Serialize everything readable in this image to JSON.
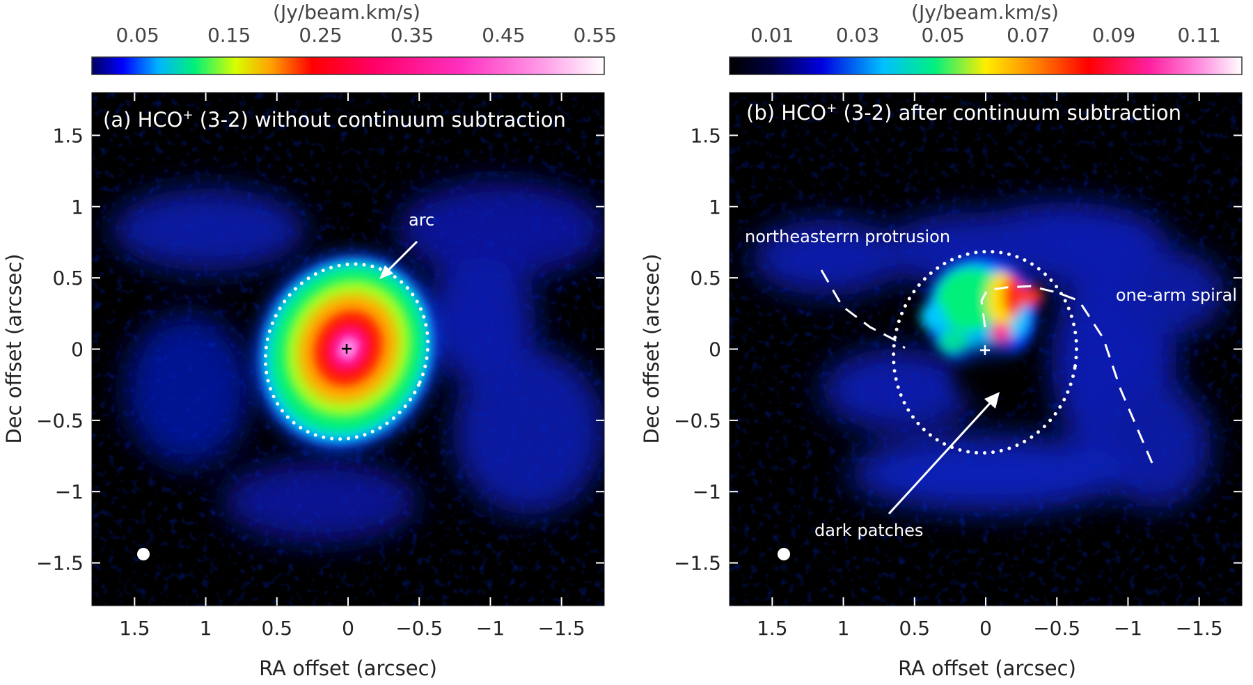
{
  "chart_data": [
    {
      "type": "heatmap",
      "panel": "a",
      "title_prefix": "(a) HCO",
      "title_sup": "+",
      "title_suffix": " (3-2) without continuum subtraction",
      "colorbar": {
        "unit": "(Jy/beam.km/s)",
        "range": [
          0.0,
          0.56
        ],
        "ticks": [
          0.05,
          0.15,
          0.25,
          0.35,
          0.45,
          0.55
        ],
        "tick_labels": [
          "0.05",
          "0.15",
          "0.25",
          "0.35",
          "0.45",
          "0.55"
        ]
      },
      "xlabel": "RA offset (arcsec)",
      "ylabel": "Dec offset (arcsec)",
      "xlim": [
        1.8,
        -1.8
      ],
      "ylim": [
        -1.8,
        1.8
      ],
      "x_ticks": [
        1.5,
        1,
        0.5,
        0,
        -0.5,
        -1,
        -1.5
      ],
      "x_tick_labels": [
        "1.5",
        "1",
        "0.5",
        "0",
        "−0.5",
        "−1",
        "−1.5"
      ],
      "y_ticks": [
        1.5,
        1,
        0.5,
        0,
        -0.5,
        -1,
        -1.5
      ],
      "y_tick_labels": [
        "1.5",
        "1",
        "0.5",
        "0",
        "−0.5",
        "−1",
        "−1.5"
      ],
      "annotations": [
        {
          "text": "arc",
          "arrow_from": [
            -0.55,
            0.83
          ],
          "arrow_to": [
            -0.25,
            0.53
          ]
        }
      ],
      "ellipse_dotted": {
        "center": [
          0.0,
          -0.05
        ],
        "semi_axes": [
          0.62,
          0.67
        ],
        "tilt_deg": 25
      },
      "star_marker": [
        0,
        0
      ],
      "beam": [
        1.43,
        -1.43
      ]
    },
    {
      "type": "heatmap",
      "panel": "b",
      "title_prefix": "(b) HCO",
      "title_sup": "+",
      "title_suffix": " (3-2) after continuum subtraction",
      "colorbar": {
        "unit": "(Jy/beam.km/s)",
        "range": [
          0.0,
          0.12
        ],
        "ticks": [
          0.01,
          0.03,
          0.05,
          0.07,
          0.09,
          0.11
        ],
        "tick_labels": [
          "0.01",
          "0.03",
          "0.05",
          "0.07",
          "0.09",
          "0.11"
        ]
      },
      "xlabel": "RA offset (arcsec)",
      "ylabel": "Dec offset (arcsec)",
      "xlim": [
        1.8,
        -1.8
      ],
      "ylim": [
        -1.8,
        1.8
      ],
      "x_ticks": [
        1.5,
        1,
        0.5,
        0,
        -0.5,
        -1,
        -1.5
      ],
      "x_tick_labels": [
        "1.5",
        "1",
        "0.5",
        "0",
        "−0.5",
        "−1",
        "−1.5"
      ],
      "y_ticks": [
        1.5,
        1,
        0.5,
        0,
        -0.5,
        -1,
        -1.5
      ],
      "y_tick_labels": [
        "1.5",
        "1",
        "0.5",
        "0",
        "−0.5",
        "−1",
        "−1.5"
      ],
      "annotations": [
        {
          "text": "northeasterrn protrusion"
        },
        {
          "text": "one-arm spiral"
        },
        {
          "text": "dark patches",
          "arrow_from": [
            0.63,
            -1.1
          ],
          "arrow_to": [
            -0.08,
            -0.28
          ]
        }
      ],
      "ellipse_dotted": {
        "center": [
          -0.05,
          -0.02
        ],
        "semi_axes": [
          0.66,
          0.72
        ],
        "tilt_deg": 10
      },
      "star_marker": [
        0,
        0
      ],
      "beam": [
        1.43,
        -1.43
      ]
    }
  ]
}
